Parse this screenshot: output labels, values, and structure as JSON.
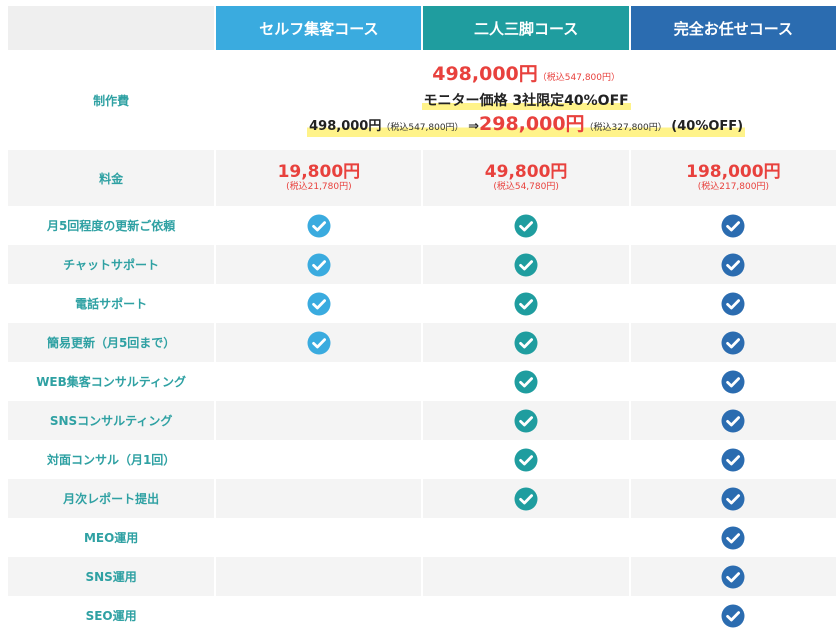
{
  "header": {
    "plan_self": "セルフ集客コース",
    "plan_tandem": "二人三脚コース",
    "plan_full": "完全お任せコース"
  },
  "colors": {
    "plan_self": "#3aabdf",
    "plan_tandem": "#1f9d9f",
    "plan_full": "#2b6cb0",
    "label_text": "#2fa1a3",
    "price_red": "#e8413d",
    "highlight": "#fff38a"
  },
  "fee": {
    "label": "制作費",
    "price": "498,000円",
    "price_tax": "（税込547,800円）",
    "monitor": "モニター価格 3社限定40%OFF",
    "old_price": "498,000円",
    "old_tax": "（税込547,800円）",
    "arrow": "⇒",
    "new_price": "298,000円",
    "new_tax": "（税込327,800円）",
    "discount": "(40%OFF)"
  },
  "price": {
    "label": "料金",
    "self": "19,800円",
    "self_tax": "(税込21,780円)",
    "tandem": "49,800円",
    "tandem_tax": "(税込54,780円)",
    "full": "198,000円",
    "full_tax": "(税込217,800円)"
  },
  "features": [
    {
      "label": "月5回程度の更新ご依頼",
      "self": true,
      "tandem": true,
      "full": true
    },
    {
      "label": "チャットサポート",
      "self": true,
      "tandem": true,
      "full": true
    },
    {
      "label": "電話サポート",
      "self": true,
      "tandem": true,
      "full": true
    },
    {
      "label": "簡易更新（月5回まで）",
      "self": true,
      "tandem": true,
      "full": true
    },
    {
      "label": "WEB集客コンサルティング",
      "self": false,
      "tandem": true,
      "full": true
    },
    {
      "label": "SNSコンサルティング",
      "self": false,
      "tandem": true,
      "full": true
    },
    {
      "label": "対面コンサル（月1回）",
      "self": false,
      "tandem": true,
      "full": true
    },
    {
      "label": "月次レポート提出",
      "self": false,
      "tandem": true,
      "full": true
    },
    {
      "label": "MEO運用",
      "self": false,
      "tandem": false,
      "full": true
    },
    {
      "label": "SNS運用",
      "self": false,
      "tandem": false,
      "full": true
    },
    {
      "label": "SEO運用",
      "self": false,
      "tandem": false,
      "full": true
    }
  ]
}
